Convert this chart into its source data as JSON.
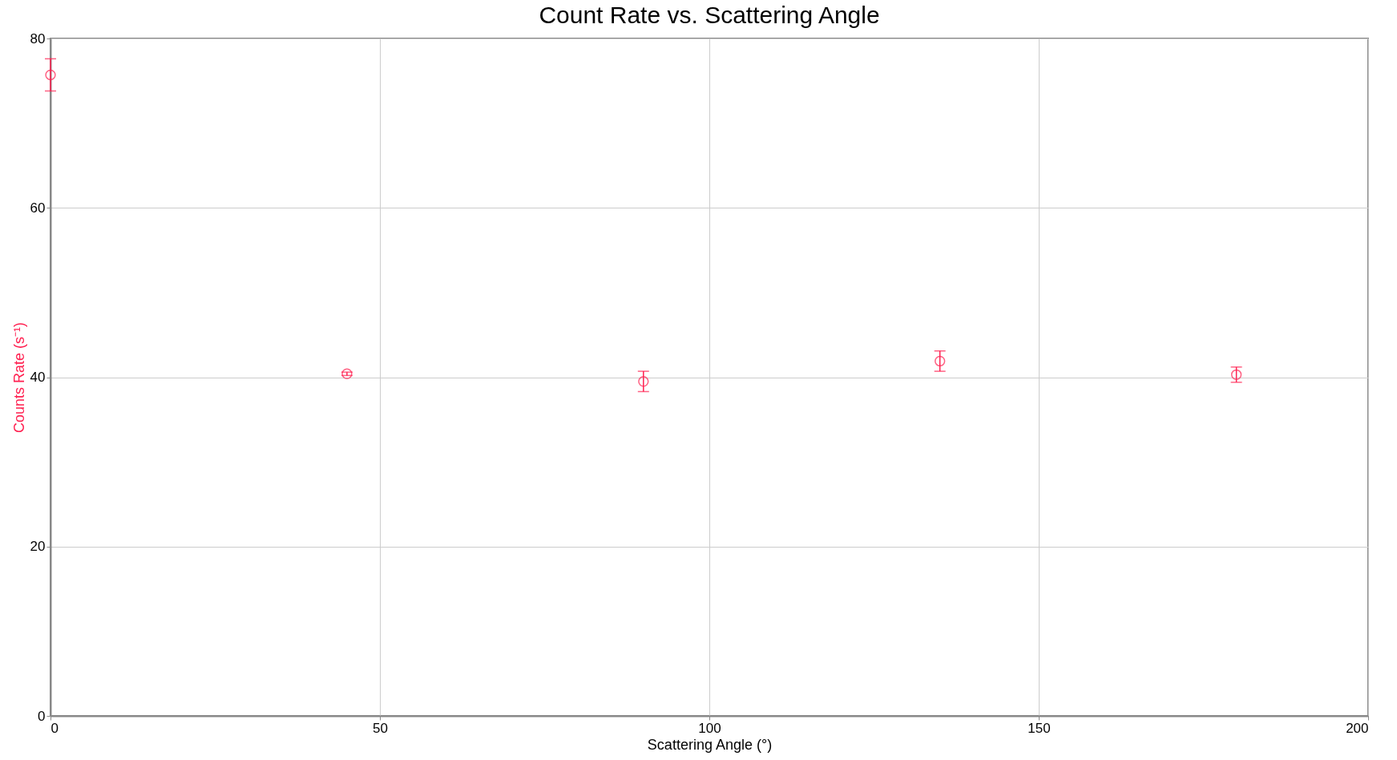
{
  "chart_data": {
    "type": "scatter",
    "title": "Count Rate vs. Scattering Angle",
    "xlabel": "Scattering Angle (°)",
    "ylabel": "Counts Rate (s⁻¹)",
    "x": [
      0,
      45,
      90,
      135,
      180
    ],
    "series": [
      {
        "color": "#ff2050",
        "values": [
          75.7,
          40.4,
          39.5,
          41.9,
          40.3
        ],
        "errors": [
          1.9,
          0.2,
          1.2,
          1.2,
          0.9
        ]
      }
    ],
    "xlim": [
      0,
      200
    ],
    "xticks": [
      0,
      50,
      100,
      150,
      200
    ],
    "ylim": [
      0,
      80
    ],
    "yticks": [
      0,
      20,
      40,
      60,
      80
    ],
    "grid": true,
    "marker": "circle"
  }
}
